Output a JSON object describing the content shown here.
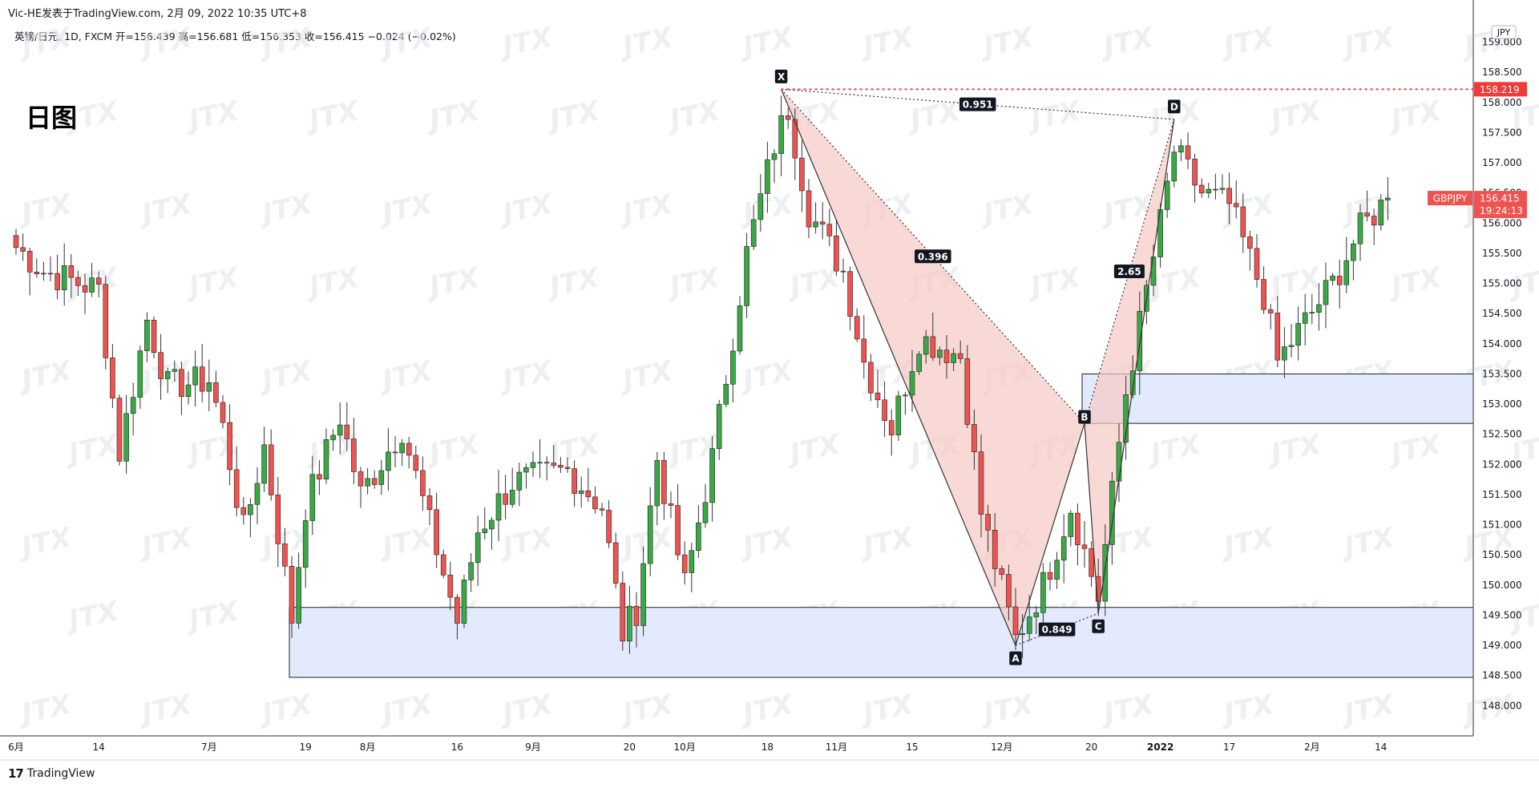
{
  "header": {
    "author_line": "Vic-HE发表于TradingView.com,  2月 09, 2022 10:35 UTC+8",
    "symbol_line": "英镑/日元, 1D, FXCM  开=156.439  高=156.681  低=156.353  收=156.415  −0.024 (−0.02%)"
  },
  "chart_title": "日图",
  "watermark_text": "JTX",
  "footer": {
    "brand": "TradingView",
    "logo": "17"
  },
  "price_axis": {
    "currency": "JPY",
    "current_label": "GBPJPY",
    "current_price": "156.415",
    "countdown": "19:24:13",
    "resistance_price": "158.219"
  },
  "colors": {
    "up": "#26a69a",
    "up_fill": "#3aa845",
    "down": "#ef5350",
    "zone": "#e3eafe",
    "pattern": "#f7c9c5",
    "resistance": "#ef3a3a"
  },
  "chart_data": {
    "type": "candlestick",
    "symbol": "GBPJPY",
    "timeframe": "1D",
    "ylim": [
      147.5,
      159.3
    ],
    "y_ticks": [
      148.0,
      148.5,
      149.0,
      149.5,
      150.0,
      150.5,
      151.0,
      151.5,
      152.0,
      152.5,
      153.0,
      153.5,
      154.0,
      154.5,
      155.0,
      155.5,
      156.0,
      156.5,
      157.0,
      157.5,
      158.0,
      158.5,
      159.0
    ],
    "x_ticks": [
      {
        "i": 0,
        "label": "6月"
      },
      {
        "i": 12,
        "label": "14"
      },
      {
        "i": 28,
        "label": "7月"
      },
      {
        "i": 42,
        "label": "19"
      },
      {
        "i": 51,
        "label": "8月"
      },
      {
        "i": 64,
        "label": "16"
      },
      {
        "i": 75,
        "label": "9月"
      },
      {
        "i": 89,
        "label": "20"
      },
      {
        "i": 97,
        "label": "10月"
      },
      {
        "i": 109,
        "label": "18"
      },
      {
        "i": 119,
        "label": "11月"
      },
      {
        "i": 130,
        "label": "15"
      },
      {
        "i": 143,
        "label": "12月"
      },
      {
        "i": 156,
        "label": "20"
      },
      {
        "i": 166,
        "label": "2022"
      },
      {
        "i": 176,
        "label": "17"
      },
      {
        "i": 188,
        "label": "2月"
      },
      {
        "i": 198,
        "label": "14"
      }
    ],
    "pattern": {
      "name": "XABCD",
      "points": [
        {
          "label": "X",
          "i": 111,
          "price": 158.219
        },
        {
          "label": "A",
          "i": 145,
          "price": 149.0
        },
        {
          "label": "B",
          "i": 155,
          "price": 152.68
        },
        {
          "label": "C",
          "i": 157,
          "price": 149.53
        },
        {
          "label": "D",
          "i": 168,
          "price": 157.72
        }
      ],
      "ratios": [
        {
          "value": "0.396",
          "between": "XB"
        },
        {
          "value": "0.849",
          "between": "AC"
        },
        {
          "value": "2.65",
          "between": "BD"
        },
        {
          "value": "0.951",
          "between": "XD"
        }
      ]
    },
    "zones": [
      {
        "from_i": 40,
        "price_top": 149.63,
        "price_bottom": 148.47
      },
      {
        "from_i": 155,
        "price_top": 153.5,
        "price_bottom": 152.68
      }
    ],
    "resistance_line": {
      "from_i": 111,
      "price": 158.219
    },
    "ohlc_path_approx": [
      {
        "i": 0,
        "close": 155.6
      },
      {
        "i": 4,
        "close": 155.2
      },
      {
        "i": 12,
        "close": 154.9
      },
      {
        "i": 15,
        "close": 152.2
      },
      {
        "i": 19,
        "close": 154.4
      },
      {
        "i": 22,
        "close": 153.3
      },
      {
        "i": 28,
        "close": 153.4
      },
      {
        "i": 30,
        "close": 152.6
      },
      {
        "i": 33,
        "close": 150.9
      },
      {
        "i": 36,
        "close": 152.3
      },
      {
        "i": 40,
        "close": 149.45
      },
      {
        "i": 42,
        "close": 151.3
      },
      {
        "i": 47,
        "close": 152.8
      },
      {
        "i": 50,
        "close": 151.5
      },
      {
        "i": 56,
        "close": 152.6
      },
      {
        "i": 60,
        "close": 151.0
      },
      {
        "i": 64,
        "close": 149.4
      },
      {
        "i": 67,
        "close": 150.9
      },
      {
        "i": 72,
        "close": 151.7
      },
      {
        "i": 80,
        "close": 151.9
      },
      {
        "i": 85,
        "close": 151.3
      },
      {
        "i": 88,
        "close": 149.2
      },
      {
        "i": 90,
        "close": 149.6
      },
      {
        "i": 93,
        "close": 152.1
      },
      {
        "i": 97,
        "close": 150.0
      },
      {
        "i": 101,
        "close": 152.1
      },
      {
        "i": 106,
        "close": 155.5
      },
      {
        "i": 110,
        "close": 157.3
      },
      {
        "i": 112,
        "close": 157.9
      },
      {
        "i": 115,
        "close": 156.2
      },
      {
        "i": 120,
        "close": 155.2
      },
      {
        "i": 123,
        "close": 153.7
      },
      {
        "i": 127,
        "close": 152.6
      },
      {
        "i": 131,
        "close": 154.1
      },
      {
        "i": 137,
        "close": 153.8
      },
      {
        "i": 140,
        "close": 151.2
      },
      {
        "i": 145,
        "close": 149.1
      },
      {
        "i": 149,
        "close": 150.0
      },
      {
        "i": 153,
        "close": 151.3
      },
      {
        "i": 157,
        "close": 149.8
      },
      {
        "i": 161,
        "close": 153.2
      },
      {
        "i": 166,
        "close": 156.0
      },
      {
        "i": 168,
        "close": 157.2
      },
      {
        "i": 172,
        "close": 156.5
      },
      {
        "i": 176,
        "close": 156.3
      },
      {
        "i": 181,
        "close": 154.8
      },
      {
        "i": 183,
        "close": 153.7
      },
      {
        "i": 186,
        "close": 154.2
      },
      {
        "i": 191,
        "close": 155.0
      },
      {
        "i": 195,
        "close": 155.9
      },
      {
        "i": 199,
        "close": 156.415
      }
    ]
  }
}
